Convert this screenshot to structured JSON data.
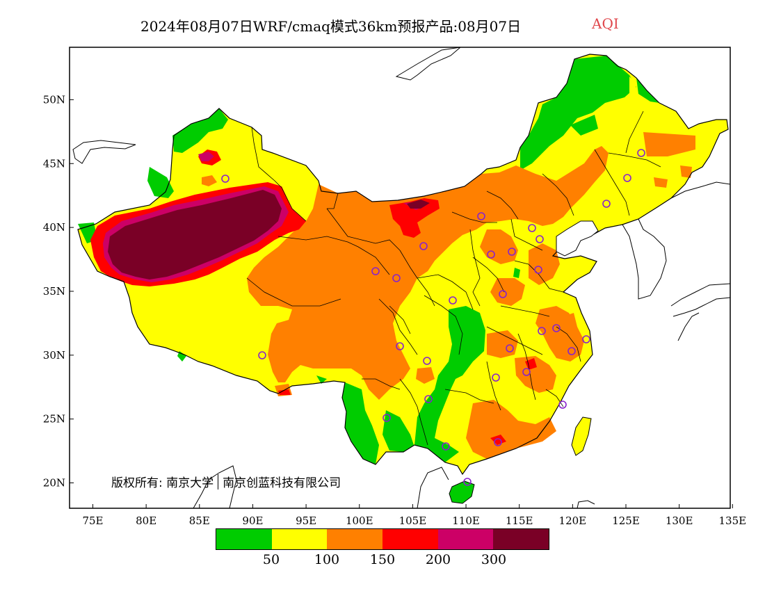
{
  "title": {
    "main": "2024年08月07日WRF/cmaq模式36km预报产品:08月07日",
    "variable": "AQI",
    "variable_color": "#e0474c"
  },
  "map": {
    "lon_range": [
      73,
      135
    ],
    "lat_range": [
      18,
      54
    ],
    "lon_ticks": [
      "75E",
      "80E",
      "85E",
      "90E",
      "95E",
      "100E",
      "105E",
      "110E",
      "115E",
      "120E",
      "125E",
      "130E",
      "135E"
    ],
    "lat_ticks": [
      "20N",
      "25N",
      "30N",
      "35N",
      "40N",
      "45N",
      "50N"
    ],
    "aqi_colors": {
      "good": "#00cc00",
      "moderate": "#ffff00",
      "unhealthy_sensitive": "#ff8000",
      "unhealthy": "#ff0000",
      "very_unhealthy": "#cc0066",
      "hazardous": "#7a0026"
    },
    "station_marker_color": "#8822cc"
  },
  "copyright": {
    "prefix": "版权所有: 南京大学",
    "suffix": "南京创蓝科技有限公司"
  },
  "legend": {
    "colors": [
      "#00cc00",
      "#ffff00",
      "#ff8000",
      "#ff0000",
      "#cc0066",
      "#7a0026"
    ],
    "labels": [
      "50",
      "100",
      "150",
      "200",
      "300"
    ]
  }
}
